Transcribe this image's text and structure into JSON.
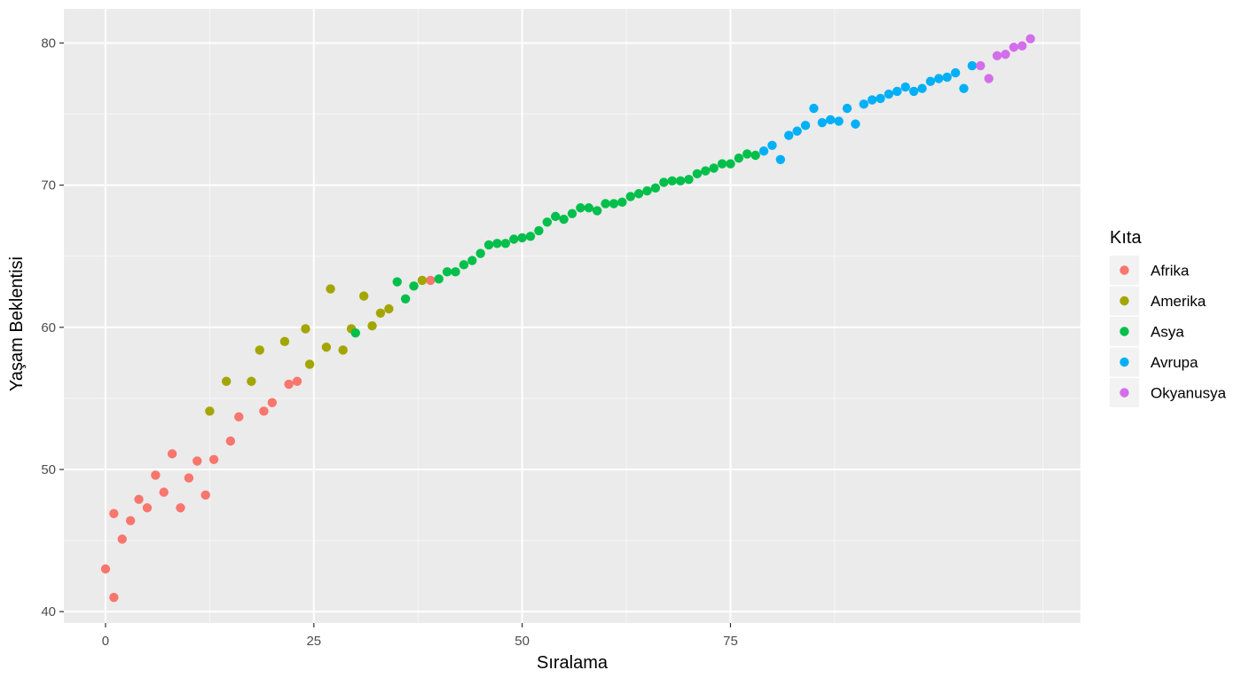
{
  "chart_data": {
    "type": "scatter",
    "title": "",
    "xlabel": "Sıralama",
    "ylabel": "Yaşam Beklentisi",
    "xlim": [
      -5,
      117
    ],
    "ylim": [
      39.2,
      82.4
    ],
    "x_ticks": [
      0,
      25,
      50,
      75
    ],
    "y_ticks": [
      40,
      50,
      60,
      70,
      80
    ],
    "grid": true,
    "legend_position": "right",
    "legend_title": "Kıta",
    "colors": {
      "Afrika": "#F8766D",
      "Amerika": "#A3A500",
      "Asya": "#00BF4A",
      "Avrupa": "#00B0F6",
      "Okyanusya": "#D36EEB"
    },
    "series": [
      {
        "name": "Afrika",
        "points": [
          [
            0,
            43.0
          ],
          [
            1,
            41.0
          ],
          [
            1,
            46.9
          ],
          [
            2,
            45.1
          ],
          [
            3,
            46.4
          ],
          [
            4,
            47.9
          ],
          [
            5,
            47.3
          ],
          [
            6,
            49.6
          ],
          [
            7,
            48.4
          ],
          [
            8,
            51.1
          ],
          [
            9,
            47.3
          ],
          [
            10,
            49.4
          ],
          [
            11,
            50.6
          ],
          [
            12,
            48.2
          ],
          [
            13,
            50.7
          ],
          [
            15,
            52.0
          ],
          [
            16,
            53.7
          ],
          [
            19,
            54.1
          ],
          [
            20,
            54.7
          ],
          [
            22,
            56.0
          ],
          [
            23,
            56.2
          ],
          [
            39,
            63.3
          ]
        ]
      },
      {
        "name": "Amerika",
        "points": [
          [
            12.5,
            54.1
          ],
          [
            14.5,
            56.2
          ],
          [
            17.5,
            56.2
          ],
          [
            18.5,
            58.4
          ],
          [
            21.5,
            59.0
          ],
          [
            24.5,
            57.4
          ],
          [
            24,
            59.9
          ],
          [
            26.5,
            58.6
          ],
          [
            27,
            62.7
          ],
          [
            28.5,
            58.4
          ],
          [
            29.5,
            59.9
          ],
          [
            31,
            62.2
          ],
          [
            32,
            60.1
          ],
          [
            33,
            61.0
          ],
          [
            34,
            61.3
          ],
          [
            38,
            63.3
          ]
        ]
      },
      {
        "name": "Asya",
        "points": [
          [
            30,
            59.6
          ],
          [
            35,
            63.2
          ],
          [
            36,
            62.0
          ],
          [
            37,
            62.9
          ],
          [
            40,
            63.4
          ],
          [
            41,
            63.9
          ],
          [
            42,
            63.9
          ],
          [
            43,
            64.4
          ],
          [
            44,
            64.7
          ],
          [
            45,
            65.2
          ],
          [
            46,
            65.8
          ],
          [
            47,
            65.9
          ],
          [
            48,
            65.9
          ],
          [
            49,
            66.2
          ],
          [
            50,
            66.3
          ],
          [
            51,
            66.4
          ],
          [
            52,
            66.8
          ],
          [
            53,
            67.4
          ],
          [
            54,
            67.8
          ],
          [
            55,
            67.6
          ],
          [
            56,
            68.0
          ],
          [
            57,
            68.4
          ],
          [
            58,
            68.4
          ],
          [
            59,
            68.2
          ],
          [
            60,
            68.7
          ],
          [
            61,
            68.7
          ],
          [
            62,
            68.8
          ],
          [
            63,
            69.2
          ],
          [
            64,
            69.4
          ],
          [
            65,
            69.6
          ],
          [
            66,
            69.8
          ],
          [
            67,
            70.2
          ],
          [
            68,
            70.3
          ],
          [
            69,
            70.3
          ],
          [
            70,
            70.4
          ],
          [
            71,
            70.8
          ],
          [
            72,
            71.0
          ],
          [
            73,
            71.2
          ],
          [
            74,
            71.5
          ],
          [
            75,
            71.5
          ],
          [
            76,
            71.9
          ],
          [
            77,
            72.2
          ],
          [
            78,
            72.1
          ]
        ]
      },
      {
        "name": "Avrupa",
        "points": [
          [
            79,
            72.4
          ],
          [
            80,
            72.8
          ],
          [
            81,
            71.8
          ],
          [
            82,
            73.5
          ],
          [
            83,
            73.8
          ],
          [
            84,
            74.2
          ],
          [
            85,
            75.4
          ],
          [
            86,
            74.4
          ],
          [
            87,
            74.6
          ],
          [
            88,
            74.5
          ],
          [
            89,
            75.4
          ],
          [
            90,
            74.3
          ],
          [
            91,
            75.7
          ],
          [
            92,
            76.0
          ],
          [
            93,
            76.1
          ],
          [
            94,
            76.4
          ],
          [
            95,
            76.6
          ],
          [
            96,
            76.9
          ],
          [
            97,
            76.6
          ],
          [
            98,
            76.8
          ],
          [
            99,
            77.3
          ],
          [
            100,
            77.5
          ],
          [
            101,
            77.6
          ],
          [
            102,
            77.9
          ],
          [
            103,
            76.8
          ],
          [
            104,
            78.4
          ]
        ]
      },
      {
        "name": "Okyanusya",
        "points": [
          [
            105,
            78.4
          ],
          [
            106,
            77.5
          ],
          [
            107,
            79.1
          ],
          [
            108,
            79.2
          ],
          [
            109,
            79.7
          ],
          [
            110,
            79.8
          ],
          [
            111,
            80.3
          ]
        ]
      }
    ]
  }
}
